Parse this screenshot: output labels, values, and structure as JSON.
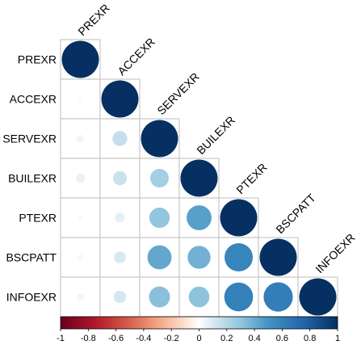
{
  "chart_data": {
    "type": "heatmap",
    "style": "corrplot-circle-lower-triangle",
    "variables": [
      "PREXR",
      "ACCEXR",
      "SERVEXR",
      "BUILEXR",
      "PTEXR",
      "BSCPATT",
      "INFOEXR"
    ],
    "matrix": [
      [
        1.0,
        0.02,
        0.04,
        0.06,
        0.02,
        0.03,
        0.04
      ],
      [
        0.02,
        1.0,
        0.16,
        0.14,
        0.07,
        0.1,
        0.11
      ],
      [
        0.04,
        0.16,
        1.0,
        0.25,
        0.3,
        0.42,
        0.32
      ],
      [
        0.06,
        0.14,
        0.25,
        1.0,
        0.45,
        0.38,
        0.31
      ],
      [
        0.02,
        0.07,
        0.3,
        0.45,
        1.0,
        0.58,
        0.6
      ],
      [
        0.03,
        0.1,
        0.42,
        0.38,
        0.58,
        1.0,
        0.62
      ],
      [
        0.04,
        0.11,
        0.32,
        0.31,
        0.6,
        0.62,
        1.0
      ]
    ],
    "colorbar": {
      "min": -1,
      "max": 1,
      "ticks": [
        "-1",
        "-0.8",
        "-0.6",
        "-0.4",
        "-0.2",
        "0",
        "0.2",
        "0.4",
        "0.6",
        "0.8",
        "1"
      ],
      "low_color": "#67001F",
      "mid_color": "#FFFFFF",
      "high_color": "#053061"
    }
  }
}
